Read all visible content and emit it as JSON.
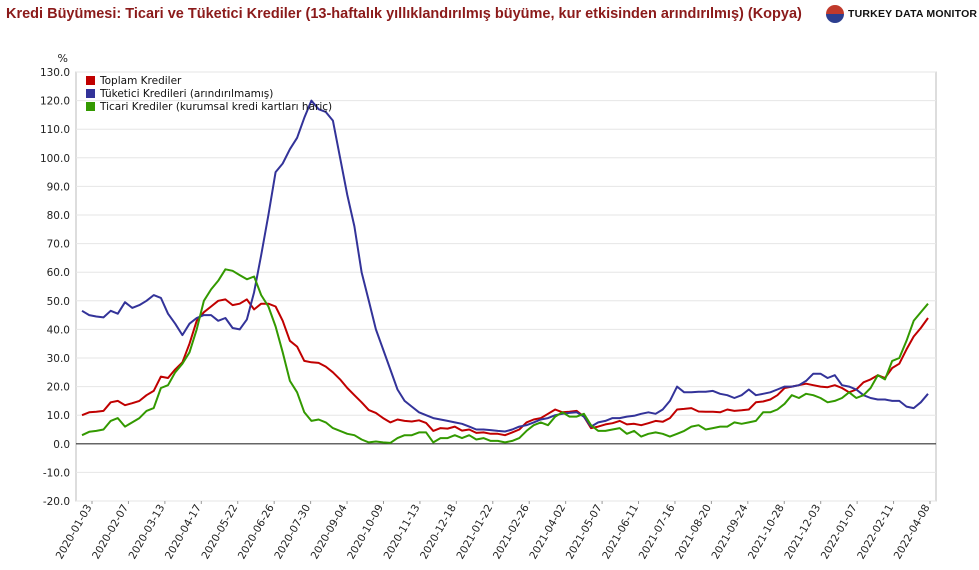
{
  "header": {
    "title": "Kredi Büyümesi: Ticari ve Tüketici Krediler (13-haftalık yıllıklandırılmış büyüme, kur etkisinden arındırılmış) (Kopya)",
    "logo_text": "TURKEY DATA MONITOR"
  },
  "chart_data": {
    "type": "line",
    "title": "Kredi Büyümesi: Ticari ve Tüketici Krediler (13-haftalık yıllıklandırılmış büyüme, kur etkisinden arındırılmış) (Kopya)",
    "ylabel": "%",
    "ylim": [
      -20,
      130
    ],
    "yticks": [
      "130.0",
      "120.0",
      "110.0",
      "100.0",
      "90.0",
      "80.0",
      "70.0",
      "60.0",
      "50.0",
      "40.0",
      "30.0",
      "20.0",
      "10.0",
      "0.0",
      "-10.0",
      "-20.0"
    ],
    "xtick_labels": [
      "2020-01-03",
      "2020-02-07",
      "2020-03-13",
      "2020-04-17",
      "2020-05-22",
      "2020-06-26",
      "2020-07-30",
      "2020-09-04",
      "2020-10-09",
      "2020-11-13",
      "2020-12-18",
      "2021-01-22",
      "2021-02-26",
      "2021-04-02",
      "2021-05-07",
      "2021-06-11",
      "2021-07-16",
      "2021-08-20",
      "2021-09-24",
      "2021-10-28",
      "2021-12-03",
      "2022-01-07",
      "2022-02-11",
      "2022-04-08"
    ],
    "grid": true,
    "legend_position": "top-left",
    "colors": {
      "toplam": "#c00000",
      "tuketici": "#333399",
      "ticari": "#339900"
    },
    "series": [
      {
        "name": "Toplam Krediler",
        "color": "#c00000",
        "values": [
          10,
          11,
          11.2,
          11.5,
          14.5,
          15,
          13.5,
          14.2,
          15,
          17,
          18.5,
          23.5,
          23,
          26,
          28.5,
          35,
          43,
          46,
          48,
          50,
          50.5,
          48.5,
          49,
          50.5,
          47,
          49,
          49,
          48,
          43,
          36,
          34,
          29,
          28.5,
          28.3,
          27,
          25,
          22.5,
          19.5,
          17,
          14.5,
          11.8,
          10.8,
          9,
          7.5,
          8.5,
          8,
          7.8,
          8.2,
          7.3,
          4.5,
          5.5,
          5.3,
          6,
          4.6,
          5,
          3.8,
          4,
          3.5,
          3.5,
          3,
          4,
          5,
          7.5,
          8.5,
          9,
          10.5,
          12,
          11,
          11.2,
          11.5,
          9.5,
          5.5,
          6,
          6.8,
          7.2,
          8,
          6.8,
          7,
          6.5,
          7.2,
          8,
          7.7,
          9,
          12,
          12.2,
          12.5,
          11.3,
          11.2,
          11.2,
          11,
          12,
          11.5,
          11.7,
          12,
          14.5,
          14.8,
          15.5,
          17,
          19.5,
          20,
          20.5,
          21,
          20.5,
          20,
          19.8,
          20.5,
          19.5,
          18,
          19,
          21.5,
          22.5,
          24,
          23,
          26.5,
          28,
          33,
          37.5,
          40.5,
          44
        ]
      },
      {
        "name": "Tüketici Kredileri (arındırılmamış)",
        "color": "#333399",
        "values": [
          46.5,
          45,
          44.5,
          44.2,
          46.5,
          45.5,
          49.5,
          47.5,
          48.5,
          50,
          52,
          51,
          45.5,
          42,
          38,
          42,
          44,
          45,
          45,
          43,
          44,
          40.5,
          40,
          43.5,
          53,
          66,
          80,
          95,
          98,
          103,
          107,
          114,
          120,
          117,
          116,
          113,
          100,
          87,
          76,
          60,
          50,
          40,
          33,
          26,
          19,
          15,
          13,
          11,
          10,
          9,
          8.5,
          8,
          7.5,
          7,
          6,
          5,
          5,
          4.8,
          4.5,
          4.3,
          5,
          6,
          6.5,
          7.5,
          8.5,
          9,
          10,
          10.5,
          10.8,
          11,
          9.5,
          6,
          7.5,
          8,
          9,
          9,
          9.5,
          9.8,
          10.5,
          11,
          10.5,
          12,
          15,
          20,
          18,
          18,
          18.2,
          18.2,
          18.5,
          17.5,
          17,
          16,
          17,
          19,
          17,
          17.5,
          18,
          19,
          20,
          20,
          20.5,
          22,
          24.5,
          24.5,
          23,
          24,
          20.5,
          20,
          19,
          17,
          16,
          15.5,
          15.5,
          15,
          15,
          13,
          12.5,
          14.5,
          17.5
        ]
      },
      {
        "name": "Ticari Krediler (kurumsal kredi kartları hariç)",
        "color": "#339900",
        "values": [
          3,
          4.2,
          4.5,
          5,
          8,
          9,
          6,
          7.5,
          9,
          11.5,
          12.5,
          19.5,
          20.5,
          25,
          28,
          32,
          40,
          50,
          54,
          57,
          61,
          60.5,
          59,
          57.5,
          58.5,
          52,
          48,
          41,
          32,
          22,
          18,
          11,
          8,
          8.5,
          7.5,
          5.5,
          4.5,
          3.5,
          3,
          1.5,
          0.5,
          0.8,
          0.5,
          0.3,
          2,
          3,
          3,
          4,
          4,
          0.5,
          2,
          2,
          3,
          2,
          3,
          1.5,
          2,
          1,
          1,
          0.5,
          1,
          2,
          4.5,
          6.5,
          7.5,
          6.5,
          9.5,
          11,
          9.5,
          9.5,
          10.5,
          6.5,
          4.5,
          4.5,
          5,
          5.5,
          3.5,
          4.5,
          2.5,
          3.5,
          4,
          3.5,
          2.5,
          3.5,
          4.5,
          6,
          6.5,
          5,
          5.5,
          6,
          6,
          7.5,
          7,
          7.5,
          8,
          11,
          11,
          12,
          14,
          17,
          16,
          17.5,
          17,
          16,
          14.5,
          15,
          16,
          18,
          16,
          17,
          19.5,
          24,
          22.5,
          29,
          30,
          36,
          43,
          46,
          49
        ]
      }
    ]
  }
}
